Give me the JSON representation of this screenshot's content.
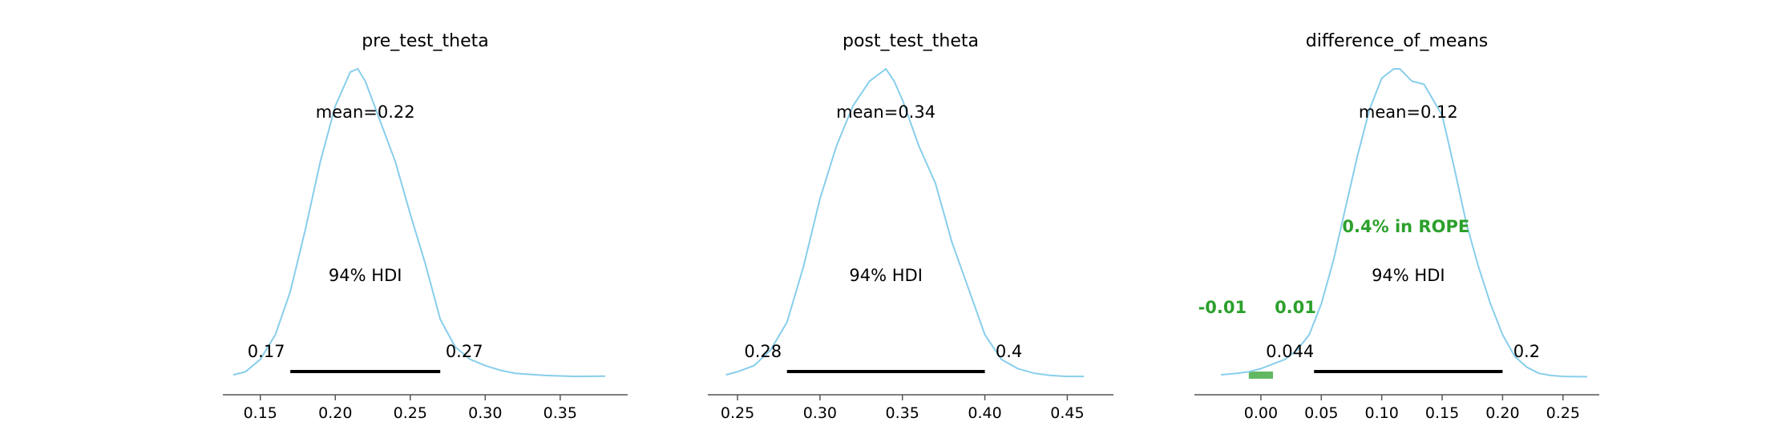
{
  "colors": {
    "density": "#87ceeb",
    "hdi_bar": "#000000",
    "rope": "#2ca02c",
    "axis": "#555555",
    "text": "#000000"
  },
  "chart_data": [
    {
      "type": "line",
      "title": "pre_test_theta",
      "mean_label": "mean=0.22",
      "hdi_label": "94% HDI",
      "hdi": [
        0.17,
        0.27
      ],
      "hdi_labels": [
        "0.17",
        "0.27"
      ],
      "xlim": [
        0.125,
        0.395
      ],
      "ticks": [
        0.15,
        0.2,
        0.25,
        0.3,
        0.35
      ],
      "tick_labels": [
        "0.15",
        "0.20",
        "0.25",
        "0.30",
        "0.35"
      ],
      "x": [
        0.132,
        0.14,
        0.15,
        0.16,
        0.17,
        0.18,
        0.19,
        0.2,
        0.21,
        0.215,
        0.22,
        0.23,
        0.24,
        0.25,
        0.26,
        0.27,
        0.28,
        0.29,
        0.3,
        0.31,
        0.32,
        0.34,
        0.36,
        0.38
      ],
      "y": [
        0.01,
        0.02,
        0.06,
        0.14,
        0.28,
        0.48,
        0.7,
        0.88,
        0.99,
        1.0,
        0.96,
        0.83,
        0.7,
        0.53,
        0.37,
        0.19,
        0.1,
        0.06,
        0.04,
        0.025,
        0.015,
        0.008,
        0.005,
        0.006
      ]
    },
    {
      "type": "line",
      "title": "post_test_theta",
      "mean_label": "mean=0.34",
      "hdi_label": "94% HDI",
      "hdi": [
        0.28,
        0.4
      ],
      "hdi_labels": [
        "0.28",
        "0.4"
      ],
      "xlim": [
        0.232,
        0.478
      ],
      "ticks": [
        0.25,
        0.3,
        0.35,
        0.4,
        0.45
      ],
      "tick_labels": [
        "0.25",
        "0.30",
        "0.35",
        "0.40",
        "0.45"
      ],
      "x": [
        0.243,
        0.25,
        0.26,
        0.27,
        0.28,
        0.29,
        0.3,
        0.31,
        0.32,
        0.33,
        0.34,
        0.345,
        0.35,
        0.36,
        0.37,
        0.38,
        0.39,
        0.4,
        0.41,
        0.42,
        0.43,
        0.44,
        0.45,
        0.46
      ],
      "y": [
        0.01,
        0.02,
        0.04,
        0.09,
        0.18,
        0.36,
        0.58,
        0.75,
        0.88,
        0.96,
        1.0,
        0.96,
        0.9,
        0.75,
        0.63,
        0.44,
        0.29,
        0.14,
        0.06,
        0.03,
        0.015,
        0.008,
        0.005,
        0.005
      ]
    },
    {
      "type": "line",
      "title": "difference_of_means",
      "mean_label": "mean=0.12",
      "hdi_label": "94% HDI",
      "hdi": [
        0.044,
        0.2
      ],
      "hdi_labels": [
        "0.044",
        "0.2"
      ],
      "rope": [
        -0.01,
        0.01
      ],
      "rope_labels": [
        "-0.01",
        "0.01"
      ],
      "rope_text": "0.4% in ROPE",
      "xlim": [
        -0.055,
        0.28
      ],
      "ticks": [
        0.0,
        0.05,
        0.1,
        0.15,
        0.2,
        0.25
      ],
      "tick_labels": [
        "0.00",
        "0.05",
        "0.10",
        "0.15",
        "0.20",
        "0.25"
      ],
      "x": [
        -0.033,
        -0.02,
        -0.01,
        0.0,
        0.01,
        0.02,
        0.03,
        0.04,
        0.05,
        0.06,
        0.07,
        0.08,
        0.09,
        0.1,
        0.11,
        0.115,
        0.125,
        0.135,
        0.15,
        0.16,
        0.17,
        0.18,
        0.19,
        0.2,
        0.21,
        0.22,
        0.23,
        0.24,
        0.25,
        0.27
      ],
      "y": [
        0.01,
        0.015,
        0.02,
        0.03,
        0.045,
        0.06,
        0.09,
        0.14,
        0.24,
        0.38,
        0.55,
        0.72,
        0.87,
        0.97,
        1.0,
        1.0,
        0.96,
        0.95,
        0.85,
        0.68,
        0.5,
        0.36,
        0.24,
        0.14,
        0.07,
        0.035,
        0.015,
        0.008,
        0.005,
        0.004
      ]
    }
  ]
}
